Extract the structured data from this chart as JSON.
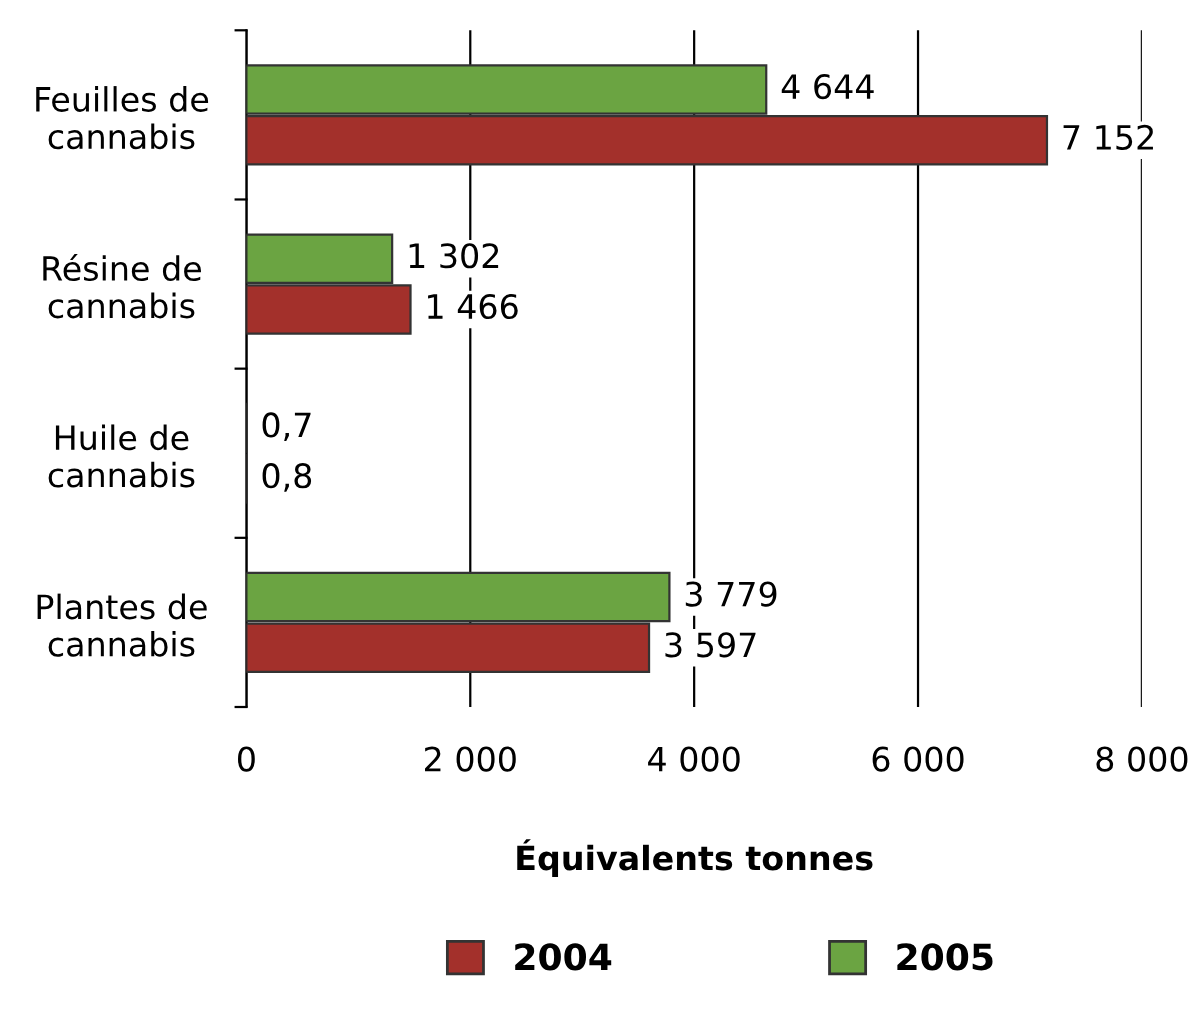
{
  "chart_data": {
    "type": "bar",
    "orientation": "horizontal",
    "xlabel": "Équivalents tonnes",
    "categories": [
      "Feuilles de\ncannabis",
      "Résine de\ncannabis",
      "Huile de\ncannabis",
      "Plantes de\ncannabis"
    ],
    "series": [
      {
        "name": "2004",
        "color": "#a3302b",
        "values": [
          7152,
          1466,
          0.8,
          3597
        ],
        "value_labels": [
          "7 152",
          "1 466",
          "0,8",
          "3 597"
        ]
      },
      {
        "name": "2005",
        "color": "#6ba442",
        "values": [
          4644,
          1302,
          0.7,
          3779
        ],
        "value_labels": [
          "4 644",
          "1 302",
          "0,7",
          "3 779"
        ]
      }
    ],
    "xlim": [
      0,
      8000
    ],
    "xticks": [
      0,
      {
        "value": 2000,
        "label": "2 000"
      },
      {
        "value": 4000,
        "label": "4 000"
      },
      {
        "value": 6000,
        "label": "6 000"
      },
      {
        "value": 8000,
        "label": "8 000"
      }
    ],
    "grid": "x",
    "legend": "bottom"
  }
}
